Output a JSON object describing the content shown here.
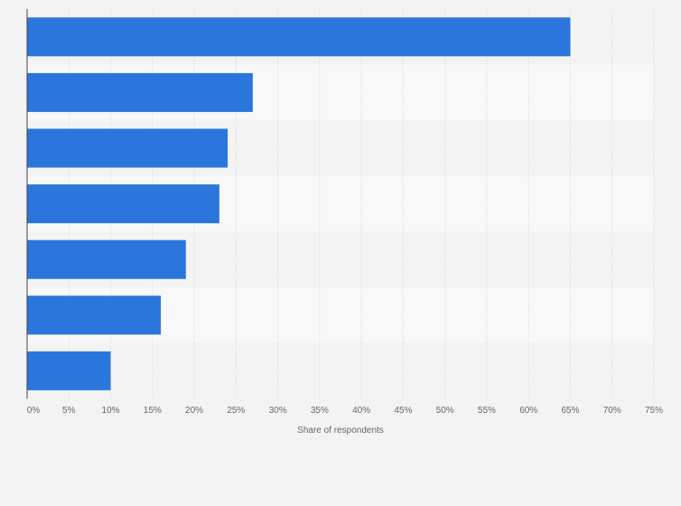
{
  "chart_data": {
    "type": "bar",
    "orientation": "horizontal",
    "categories": [
      "",
      "",
      "",
      "",
      "",
      "",
      ""
    ],
    "values": [
      65,
      27,
      24,
      23,
      19,
      16,
      10
    ],
    "title": "",
    "xlabel": "Share of respondents",
    "ylabel": "",
    "xlim": [
      0,
      75
    ],
    "x_ticks": [
      "0%",
      "5%",
      "10%",
      "15%",
      "20%",
      "25%",
      "30%",
      "35%",
      "40%",
      "45%",
      "50%",
      "55%",
      "60%",
      "65%",
      "70%",
      "75%"
    ],
    "bar_color": "#2a76dd",
    "grid": true,
    "value_labels_shown": false
  },
  "colors": {
    "background": "#f3f3f3",
    "band_light": "#f8f8f8",
    "band_dark": "#f3f3f3",
    "grid": "#dddddd",
    "axis": "#444444"
  }
}
